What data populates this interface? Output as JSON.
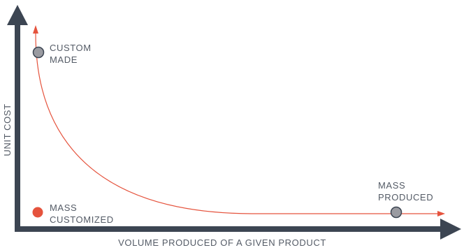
{
  "axes": {
    "x_label": "VOLUME PRODUCED OF A GIVEN PRODUCT",
    "y_label": "UNIT COST"
  },
  "points": {
    "custom_made": {
      "line1": "CUSTOM",
      "line2": "MADE"
    },
    "mass_produced": {
      "line1": "MASS",
      "line2": "PRODUCED"
    },
    "mass_customized": {
      "line1": "MASS",
      "line2": "CUSTOMIZED"
    }
  },
  "colors": {
    "axis": "#3c4552",
    "curve": "#e5533d",
    "point_gray": "#9a9ba1",
    "point_red": "#e5533d",
    "text": "#545b66"
  }
}
